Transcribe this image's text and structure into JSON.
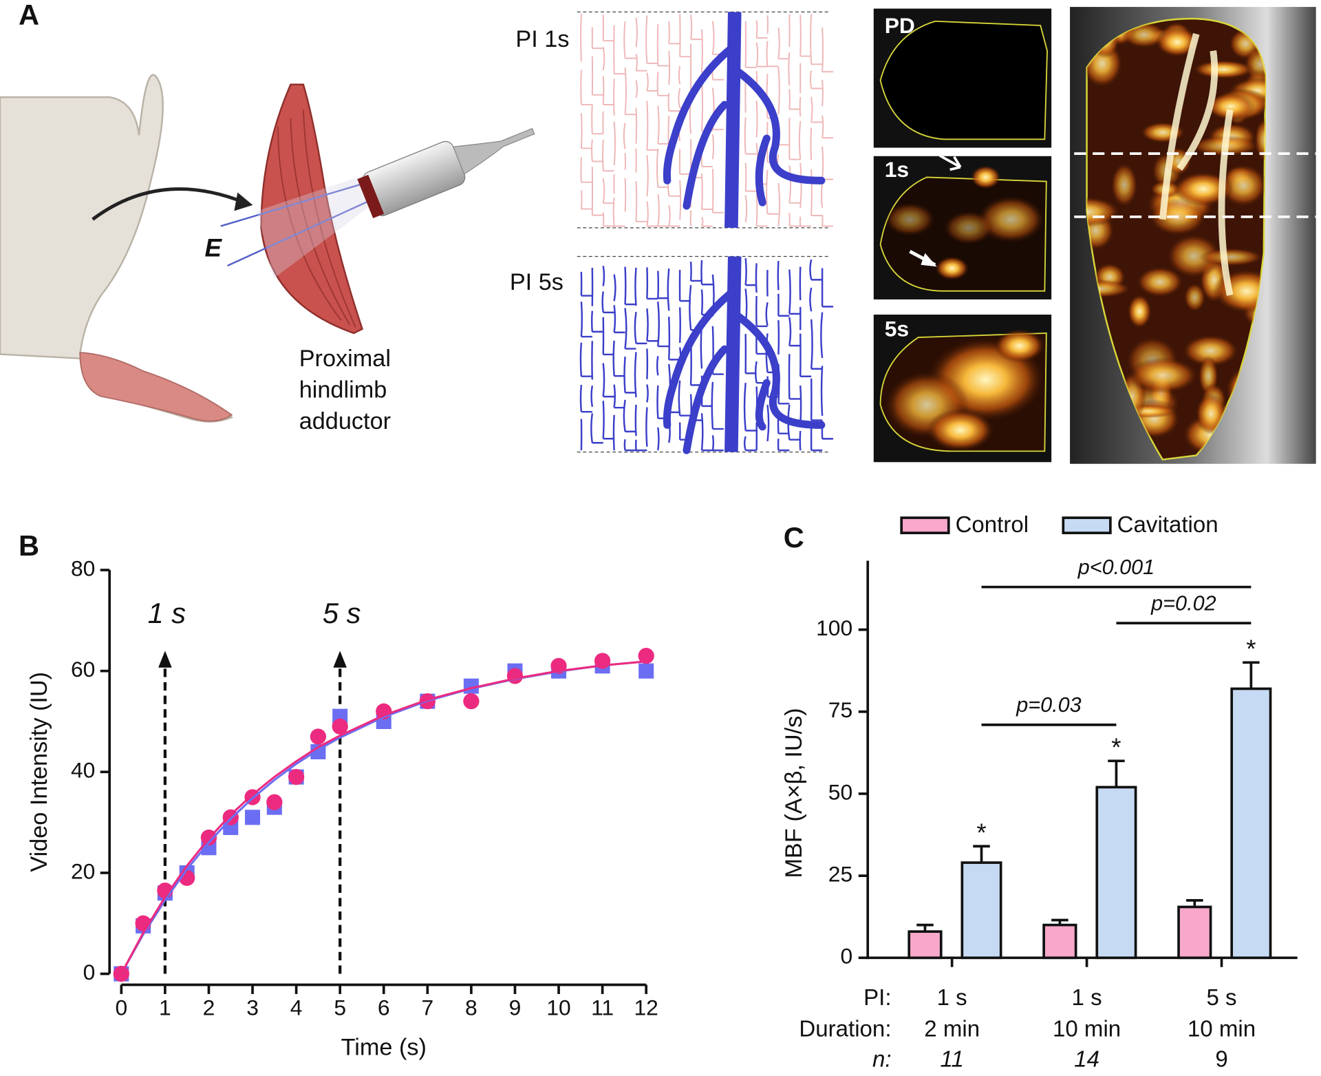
{
  "panels": {
    "a": "A",
    "b": "B",
    "c": "C"
  },
  "illustration": {
    "electrode": "E",
    "muscle_label": [
      "Proximal",
      "hindlimb",
      "adductor"
    ],
    "schemes": [
      "PI 1s",
      "PI 5s"
    ],
    "images": [
      "PD",
      "1s",
      "5s"
    ]
  },
  "chart_data": [
    {
      "type": "scatter",
      "xlabel": "Time (s)",
      "ylabel": "Video Intensity (IU)",
      "x": [
        0,
        0.5,
        1,
        1.5,
        2,
        2.5,
        3,
        3.5,
        4,
        4.5,
        5,
        6,
        7,
        8,
        9,
        10,
        11,
        12
      ],
      "series": [
        {
          "color": "#6b6ef2",
          "marker": "square",
          "values": [
            0,
            9.5,
            16,
            20,
            25,
            29,
            31,
            33,
            39,
            44,
            51,
            50,
            54,
            57,
            60,
            60,
            61,
            60
          ]
        },
        {
          "color": "#ec2a7f",
          "marker": "circle",
          "values": [
            0,
            10,
            16.5,
            19,
            27,
            31,
            35,
            34,
            39,
            47,
            49,
            52,
            54,
            54,
            59,
            61,
            62,
            63
          ]
        }
      ],
      "fits": [
        {
          "color": "#6b6ef2",
          "x": [
            0,
            0.5,
            1,
            1.5,
            2,
            2.5,
            3,
            3.5,
            4,
            4.5,
            5,
            6,
            7,
            8,
            9,
            10,
            11,
            12
          ],
          "values": [
            0,
            7.8,
            14.6,
            20.7,
            26.0,
            30.7,
            34.8,
            38.4,
            41.6,
            44.4,
            46.8,
            50.9,
            54.1,
            56.5,
            58.4,
            59.9,
            61.1,
            61.9
          ]
        },
        {
          "color": "#ec2a7f",
          "x": [
            0,
            0.5,
            1,
            1.5,
            2,
            2.5,
            3,
            3.5,
            4,
            4.5,
            5,
            6,
            7,
            8,
            9,
            10,
            11,
            12
          ],
          "values": [
            0,
            8.1,
            15.2,
            21.4,
            26.8,
            31.5,
            35.5,
            39.0,
            42.1,
            44.9,
            47.2,
            51.2,
            54.3,
            56.6,
            58.5,
            60.0,
            61.1,
            61.9
          ]
        }
      ],
      "annotations": [
        {
          "text": "1 s",
          "x": 1,
          "y": 71,
          "arrow": [
            0,
            63
          ]
        },
        {
          "text": "5 s",
          "x": 5,
          "y": 71,
          "arrow": [
            0,
            63
          ]
        }
      ],
      "xlim": [
        0,
        12
      ],
      "xticks": [
        0,
        1,
        2,
        3,
        4,
        5,
        6,
        7,
        8,
        9,
        10,
        11,
        12
      ],
      "ylim": [
        0,
        80
      ],
      "yticks": [
        0,
        20,
        40,
        60,
        80
      ]
    },
    {
      "type": "bar",
      "ylabel": "MBF (A×β, IU/s)",
      "legend": "top",
      "row_labels": [
        "PI:",
        "Duration:",
        "n:"
      ],
      "categories": [
        "1 s",
        "1 s",
        "5 s"
      ],
      "durations": [
        "2 min",
        "10 min",
        "10 min"
      ],
      "n": [
        11,
        14,
        9
      ],
      "n_italic": [
        true,
        true,
        false
      ],
      "series": [
        {
          "name": "Control",
          "color": "#f7a8cb",
          "values": [
            8,
            10,
            15.5
          ],
          "errors": [
            2,
            1.5,
            2
          ]
        },
        {
          "name": "Cavitation",
          "color": "#c6dbf3",
          "values": [
            29,
            52,
            82
          ],
          "errors": [
            5,
            8,
            8
          ],
          "significance": [
            "*",
            "*",
            "*"
          ]
        }
      ],
      "comparisons": [
        {
          "from": 0,
          "to": 2,
          "y": 113,
          "label": "p<0.001"
        },
        {
          "from": 1,
          "to": 2,
          "y": 102,
          "label": "p=0.02"
        },
        {
          "from": 0,
          "to": 1,
          "y": 71,
          "label": "p=0.03"
        }
      ],
      "ylim": [
        0,
        121
      ],
      "yticks": [
        0,
        25,
        50,
        75,
        100
      ]
    }
  ]
}
